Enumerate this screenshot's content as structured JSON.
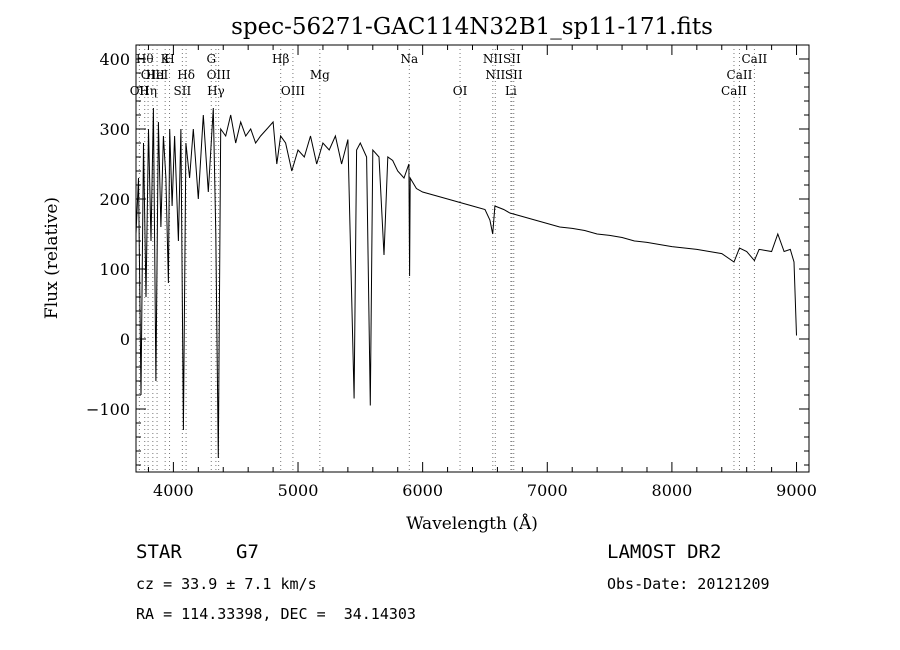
{
  "chart_data": {
    "type": "line",
    "title": "spec-56271-GAC114N32B1_sp11-171.fits",
    "xlabel": "Wavelength (Å)",
    "ylabel": "Flux (relative)",
    "xlim": [
      3700,
      9100
    ],
    "ylim": [
      -190,
      420
    ],
    "xticks": [
      4000,
      5000,
      6000,
      7000,
      8000,
      9000
    ],
    "xtick_labels": [
      "4000",
      "5000",
      "6000",
      "7000",
      "8000",
      "9000"
    ],
    "yticks": [
      -100,
      0,
      100,
      200,
      300,
      400
    ],
    "ytick_labels": [
      "−100",
      "0",
      "100",
      "200",
      "300",
      "400"
    ],
    "grid": false,
    "series": [
      {
        "x": [
          3700,
          3720,
          3740,
          3760,
          3780,
          3800,
          3820,
          3840,
          3860,
          3880,
          3900,
          3920,
          3940,
          3960,
          3970,
          3990,
          4010,
          4040,
          4060,
          4080,
          4100,
          4130,
          4160,
          4200,
          4240,
          4280,
          4320,
          4340,
          4360,
          4380,
          4420,
          4460,
          4500,
          4540,
          4580,
          4620,
          4660,
          4700,
          4750,
          4800,
          4830,
          4860,
          4900,
          4950,
          5000,
          5050,
          5100,
          5150,
          5200,
          5250,
          5300,
          5350,
          5400,
          5450,
          5470,
          5500,
          5550,
          5580,
          5600,
          5650,
          5690,
          5720,
          5760,
          5800,
          5850,
          5890,
          5895,
          5900,
          5950,
          6000,
          6100,
          6200,
          6300,
          6400,
          6500,
          6540,
          6562,
          6580,
          6650,
          6700,
          6800,
          6900,
          7000,
          7100,
          7200,
          7300,
          7400,
          7500,
          7600,
          7700,
          7800,
          7900,
          8000,
          8100,
          8200,
          8300,
          8400,
          8498,
          8542,
          8600,
          8662,
          8700,
          8800,
          8850,
          8900,
          8950,
          8980,
          9000
        ],
        "values": [
          150,
          230,
          -80,
          280,
          60,
          300,
          140,
          330,
          -60,
          310,
          160,
          290,
          230,
          80,
          300,
          190,
          290,
          140,
          300,
          -130,
          280,
          230,
          300,
          200,
          320,
          210,
          330,
          150,
          -170,
          300,
          290,
          320,
          280,
          310,
          290,
          300,
          280,
          290,
          300,
          310,
          250,
          290,
          280,
          240,
          270,
          260,
          290,
          250,
          280,
          270,
          290,
          250,
          285,
          -85,
          270,
          280,
          260,
          -95,
          270,
          260,
          120,
          260,
          255,
          240,
          230,
          250,
          90,
          230,
          215,
          210,
          205,
          200,
          195,
          190,
          185,
          170,
          150,
          190,
          185,
          180,
          175,
          170,
          165,
          160,
          158,
          155,
          150,
          148,
          145,
          140,
          138,
          135,
          132,
          130,
          128,
          125,
          122,
          110,
          130,
          125,
          112,
          128,
          125,
          150,
          125,
          128,
          110,
          5
        ]
      }
    ],
    "line_labels": [
      {
        "x": 3727,
        "text": "OII",
        "row": 3
      },
      {
        "x": 3770,
        "text": "Hθ",
        "row": 1
      },
      {
        "x": 3797,
        "text": "Hη",
        "row": 3
      },
      {
        "x": 3835,
        "text": "OIII",
        "row": 2
      },
      {
        "x": 3869,
        "text": "HeI",
        "row": 2
      },
      {
        "x": 3934,
        "text": "K",
        "row": 1
      },
      {
        "x": 3969,
        "text": "H",
        "row": 1
      },
      {
        "x": 4102,
        "text": "Hδ",
        "row": 2
      },
      {
        "x": 4072,
        "text": "SII",
        "row": 3
      },
      {
        "x": 4304,
        "text": "G",
        "row": 1
      },
      {
        "x": 4363,
        "text": "OIII",
        "row": 2
      },
      {
        "x": 4341,
        "text": "Hγ",
        "row": 3
      },
      {
        "x": 4861,
        "text": "Hβ",
        "row": 1
      },
      {
        "x": 4959,
        "text": "OIII",
        "row": 3
      },
      {
        "x": 5175,
        "text": "Mg",
        "row": 2
      },
      {
        "x": 5893,
        "text": "Na",
        "row": 1
      },
      {
        "x": 6300,
        "text": "OI",
        "row": 3
      },
      {
        "x": 6563,
        "text": "NII",
        "row": 1
      },
      {
        "x": 6583,
        "text": "NII",
        "row": 2
      },
      {
        "x": 6716,
        "text": "SII",
        "row": 1
      },
      {
        "x": 6731,
        "text": "SII",
        "row": 2
      },
      {
        "x": 6708,
        "text": "Li",
        "row": 3
      },
      {
        "x": 8662,
        "text": "CaII",
        "row": 1
      },
      {
        "x": 8542,
        "text": "CaII",
        "row": 2
      },
      {
        "x": 8498,
        "text": "CaII",
        "row": 3
      }
    ]
  },
  "info": {
    "class": "STAR",
    "subclass": "G7",
    "survey": "LAMOST DR2",
    "cz": "cz = 33.9 ± 7.1 km/s",
    "obs_date": "Obs-Date: 20121209",
    "coords": "RA = 114.33398, DEC =  34.14303"
  }
}
